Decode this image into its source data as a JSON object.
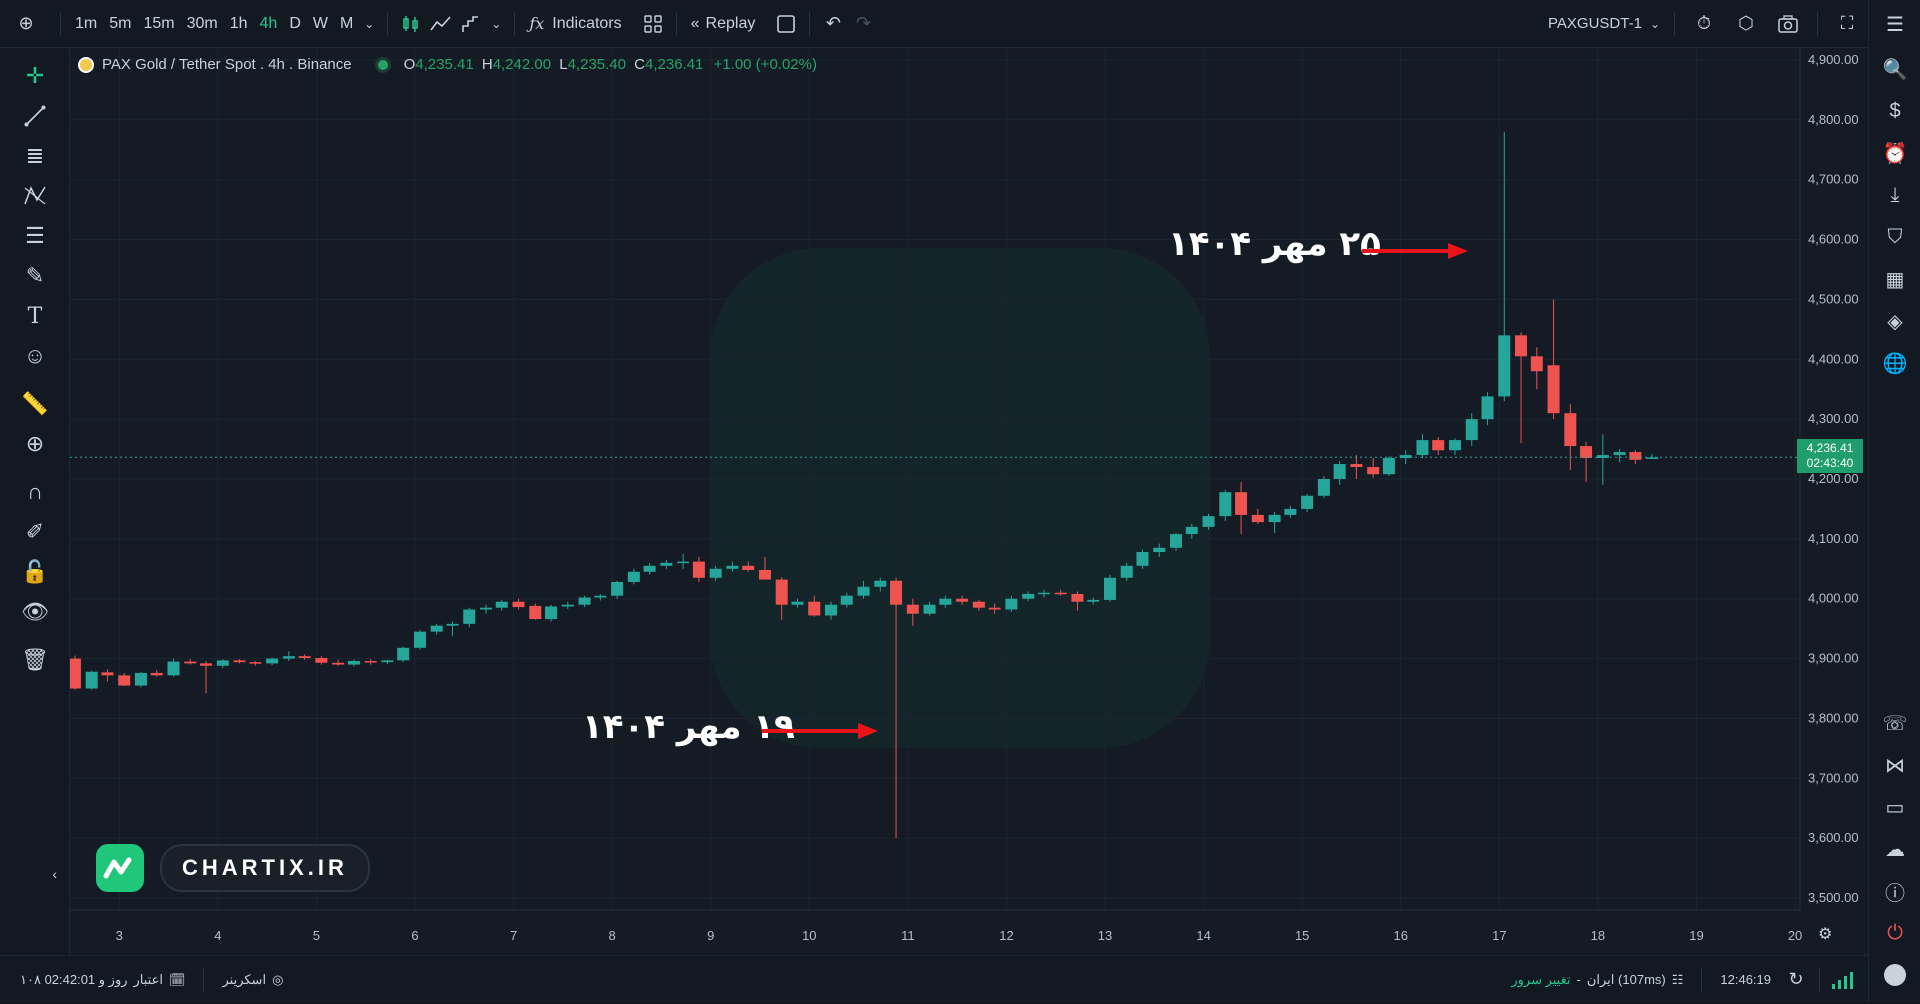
{
  "toolbar": {
    "timeframes": [
      "1m",
      "5m",
      "15m",
      "30m",
      "1h",
      "4h",
      "D",
      "W",
      "M"
    ],
    "active_timeframe": "4h",
    "indicators_label": "Indicators",
    "replay_label": "Replay",
    "symbol": "PAXGUSDT-1"
  },
  "legend": {
    "title": "PAX Gold / Tether Spot . 4h . Binance",
    "o_label": "O",
    "o_value": "4,235.41",
    "h_label": "H",
    "h_value": "4,242.00",
    "l_label": "L",
    "l_value": "4,235.40",
    "c_label": "C",
    "c_value": "4,236.41",
    "change": "+1.00 (+0.02%)"
  },
  "price_tag": {
    "price": "4,236.41",
    "countdown": "02:43:40"
  },
  "annotations": {
    "top": "۲۵ مهر ۱۴۰۴",
    "bottom": "۱۹ مهر ۱۴۰۴"
  },
  "logo": {
    "text": "CHARTIX.IR"
  },
  "statusbar": {
    "credit": "۱۰۸ روز و 02:42:01",
    "credit_label": "اعتبار",
    "screener": "اسکرینر",
    "server_change": "تغییر سرور",
    "server": "ایران (107ms)",
    "time": "12:46:19"
  },
  "colors": {
    "up": "#26a69a",
    "down": "#ef5350",
    "accent": "#26c68c",
    "annot_arrow": "#e8141a"
  },
  "chart_data": {
    "type": "candlestick",
    "y_ticks": [
      "4,900.00",
      "4,800.00",
      "4,700.00",
      "4,600.00",
      "4,500.00",
      "4,400.00",
      "4,300.00",
      "4,200.00",
      "4,100.00",
      "4,000.00",
      "3,900.00",
      "3,800.00",
      "3,700.00",
      "3,600.00",
      "3,500.00"
    ],
    "ylim": [
      3480,
      4920
    ],
    "x_ticks": [
      "3",
      "4",
      "5",
      "6",
      "7",
      "8",
      "9",
      "10",
      "11",
      "12",
      "13",
      "14",
      "15",
      "16",
      "17",
      "18",
      "19",
      "20"
    ],
    "x_tick_positions": [
      3,
      4,
      5,
      6,
      7,
      8,
      9,
      10,
      11,
      12,
      13,
      14,
      15,
      16,
      17,
      18,
      19,
      20
    ],
    "xlim": [
      2.5,
      20.05
    ],
    "current_price": 4236.41,
    "annotation_targets": {
      "top": {
        "x": 16.8,
        "y": 4600
      },
      "bottom": {
        "x": 10.8,
        "y": 3800
      }
    },
    "candles": [
      {
        "t": 2.55,
        "o": 3900,
        "h": 3905,
        "l": 3848,
        "c": 3850
      },
      {
        "t": 2.72,
        "o": 3850,
        "h": 3880,
        "l": 3848,
        "c": 3878
      },
      {
        "t": 2.88,
        "o": 3877,
        "h": 3882,
        "l": 3862,
        "c": 3872
      },
      {
        "t": 3.05,
        "o": 3872,
        "h": 3876,
        "l": 3854,
        "c": 3855
      },
      {
        "t": 3.22,
        "o": 3855,
        "h": 3878,
        "l": 3852,
        "c": 3876
      },
      {
        "t": 3.38,
        "o": 3876,
        "h": 3881,
        "l": 3870,
        "c": 3872
      },
      {
        "t": 3.55,
        "o": 3872,
        "h": 3900,
        "l": 3870,
        "c": 3895
      },
      {
        "t": 3.72,
        "o": 3895,
        "h": 3899,
        "l": 3890,
        "c": 3892
      },
      {
        "t": 3.88,
        "o": 3892,
        "h": 3896,
        "l": 3842,
        "c": 3888
      },
      {
        "t": 4.05,
        "o": 3888,
        "h": 3899,
        "l": 3884,
        "c": 3897
      },
      {
        "t": 4.22,
        "o": 3897,
        "h": 3899,
        "l": 3892,
        "c": 3894
      },
      {
        "t": 4.38,
        "o": 3894,
        "h": 3896,
        "l": 3888,
        "c": 3892
      },
      {
        "t": 4.55,
        "o": 3892,
        "h": 3902,
        "l": 3889,
        "c": 3900
      },
      {
        "t": 4.72,
        "o": 3900,
        "h": 3912,
        "l": 3896,
        "c": 3904
      },
      {
        "t": 4.88,
        "o": 3904,
        "h": 3907,
        "l": 3898,
        "c": 3901
      },
      {
        "t": 5.05,
        "o": 3901,
        "h": 3904,
        "l": 3890,
        "c": 3893
      },
      {
        "t": 5.22,
        "o": 3893,
        "h": 3898,
        "l": 3888,
        "c": 3890
      },
      {
        "t": 5.38,
        "o": 3890,
        "h": 3898,
        "l": 3887,
        "c": 3896
      },
      {
        "t": 5.55,
        "o": 3896,
        "h": 3899,
        "l": 3890,
        "c": 3894
      },
      {
        "t": 5.72,
        "o": 3894,
        "h": 3898,
        "l": 3891,
        "c": 3897
      },
      {
        "t": 5.88,
        "o": 3897,
        "h": 3920,
        "l": 3894,
        "c": 3918
      },
      {
        "t": 6.05,
        "o": 3918,
        "h": 3948,
        "l": 3915,
        "c": 3945
      },
      {
        "t": 6.22,
        "o": 3945,
        "h": 3958,
        "l": 3940,
        "c": 3955
      },
      {
        "t": 6.38,
        "o": 3955,
        "h": 3962,
        "l": 3938,
        "c": 3958
      },
      {
        "t": 6.55,
        "o": 3958,
        "h": 3985,
        "l": 3952,
        "c": 3982
      },
      {
        "t": 6.72,
        "o": 3982,
        "h": 3990,
        "l": 3975,
        "c": 3985
      },
      {
        "t": 6.88,
        "o": 3985,
        "h": 3998,
        "l": 3980,
        "c": 3995
      },
      {
        "t": 7.05,
        "o": 3995,
        "h": 4000,
        "l": 3982,
        "c": 3986
      },
      {
        "t": 7.22,
        "o": 3988,
        "h": 3992,
        "l": 3965,
        "c": 3966
      },
      {
        "t": 7.38,
        "o": 3966,
        "h": 3990,
        "l": 3962,
        "c": 3987
      },
      {
        "t": 7.55,
        "o": 3987,
        "h": 3995,
        "l": 3983,
        "c": 3990
      },
      {
        "t": 7.72,
        "o": 3990,
        "h": 4005,
        "l": 3986,
        "c": 4002
      },
      {
        "t": 7.88,
        "o": 4002,
        "h": 4008,
        "l": 3997,
        "c": 4005
      },
      {
        "t": 8.05,
        "o": 4005,
        "h": 4030,
        "l": 4000,
        "c": 4028
      },
      {
        "t": 8.22,
        "o": 4028,
        "h": 4050,
        "l": 4024,
        "c": 4045
      },
      {
        "t": 8.38,
        "o": 4045,
        "h": 4060,
        "l": 4040,
        "c": 4055
      },
      {
        "t": 8.55,
        "o": 4055,
        "h": 4065,
        "l": 4050,
        "c": 4060
      },
      {
        "t": 8.72,
        "o": 4060,
        "h": 4075,
        "l": 4050,
        "c": 4062
      },
      {
        "t": 8.88,
        "o": 4062,
        "h": 4070,
        "l": 4028,
        "c": 4035
      },
      {
        "t": 9.05,
        "o": 4035,
        "h": 4055,
        "l": 4030,
        "c": 4050
      },
      {
        "t": 9.22,
        "o": 4050,
        "h": 4062,
        "l": 4045,
        "c": 4055
      },
      {
        "t": 9.38,
        "o": 4055,
        "h": 4062,
        "l": 4045,
        "c": 4048
      },
      {
        "t": 9.55,
        "o": 4048,
        "h": 4070,
        "l": 4040,
        "c": 4032
      },
      {
        "t": 9.72,
        "o": 4032,
        "h": 4036,
        "l": 3965,
        "c": 3990
      },
      {
        "t": 9.88,
        "o": 3990,
        "h": 4000,
        "l": 3985,
        "c": 3995
      },
      {
        "t": 10.05,
        "o": 3995,
        "h": 4005,
        "l": 3970,
        "c": 3972
      },
      {
        "t": 10.22,
        "o": 3972,
        "h": 3995,
        "l": 3965,
        "c": 3990
      },
      {
        "t": 10.38,
        "o": 3990,
        "h": 4010,
        "l": 3985,
        "c": 4005
      },
      {
        "t": 10.55,
        "o": 4005,
        "h": 4030,
        "l": 4000,
        "c": 4020
      },
      {
        "t": 10.72,
        "o": 4020,
        "h": 4035,
        "l": 4012,
        "c": 4030
      },
      {
        "t": 10.88,
        "o": 4030,
        "h": 4035,
        "l": 3600,
        "c": 3990
      },
      {
        "t": 11.05,
        "o": 3990,
        "h": 4000,
        "l": 3955,
        "c": 3975
      },
      {
        "t": 11.22,
        "o": 3975,
        "h": 3995,
        "l": 3972,
        "c": 3990
      },
      {
        "t": 11.38,
        "o": 3990,
        "h": 4005,
        "l": 3985,
        "c": 4000
      },
      {
        "t": 11.55,
        "o": 4000,
        "h": 4005,
        "l": 3990,
        "c": 3995
      },
      {
        "t": 11.72,
        "o": 3995,
        "h": 3998,
        "l": 3980,
        "c": 3985
      },
      {
        "t": 11.88,
        "o": 3985,
        "h": 3992,
        "l": 3975,
        "c": 3982
      },
      {
        "t": 12.05,
        "o": 3982,
        "h": 4005,
        "l": 3978,
        "c": 4000
      },
      {
        "t": 12.22,
        "o": 4000,
        "h": 4012,
        "l": 3996,
        "c": 4008
      },
      {
        "t": 12.38,
        "o": 4008,
        "h": 4015,
        "l": 4002,
        "c": 4010
      },
      {
        "t": 12.55,
        "o": 4010,
        "h": 4015,
        "l": 4005,
        "c": 4008
      },
      {
        "t": 12.72,
        "o": 4008,
        "h": 4012,
        "l": 3980,
        "c": 3995
      },
      {
        "t": 12.88,
        "o": 3995,
        "h": 4002,
        "l": 3990,
        "c": 3998
      },
      {
        "t": 13.05,
        "o": 3998,
        "h": 4040,
        "l": 3995,
        "c": 4035
      },
      {
        "t": 13.22,
        "o": 4035,
        "h": 4060,
        "l": 4030,
        "c": 4055
      },
      {
        "t": 13.38,
        "o": 4055,
        "h": 4082,
        "l": 4050,
        "c": 4078
      },
      {
        "t": 13.55,
        "o": 4078,
        "h": 4092,
        "l": 4070,
        "c": 4085
      },
      {
        "t": 13.72,
        "o": 4085,
        "h": 4110,
        "l": 4080,
        "c": 4108
      },
      {
        "t": 13.88,
        "o": 4108,
        "h": 4125,
        "l": 4100,
        "c": 4120
      },
      {
        "t": 14.05,
        "o": 4120,
        "h": 4142,
        "l": 4115,
        "c": 4138
      },
      {
        "t": 14.22,
        "o": 4138,
        "h": 4182,
        "l": 4130,
        "c": 4178
      },
      {
        "t": 14.38,
        "o": 4178,
        "h": 4195,
        "l": 4108,
        "c": 4140
      },
      {
        "t": 14.55,
        "o": 4140,
        "h": 4150,
        "l": 4125,
        "c": 4128
      },
      {
        "t": 14.72,
        "o": 4128,
        "h": 4145,
        "l": 4110,
        "c": 4140
      },
      {
        "t": 14.88,
        "o": 4140,
        "h": 4155,
        "l": 4135,
        "c": 4150
      },
      {
        "t": 15.05,
        "o": 4150,
        "h": 4175,
        "l": 4145,
        "c": 4172
      },
      {
        "t": 15.22,
        "o": 4172,
        "h": 4205,
        "l": 4168,
        "c": 4200
      },
      {
        "t": 15.38,
        "o": 4200,
        "h": 4230,
        "l": 4190,
        "c": 4225
      },
      {
        "t": 15.55,
        "o": 4225,
        "h": 4240,
        "l": 4200,
        "c": 4220
      },
      {
        "t": 15.72,
        "o": 4220,
        "h": 4235,
        "l": 4202,
        "c": 4208
      },
      {
        "t": 15.88,
        "o": 4208,
        "h": 4238,
        "l": 4205,
        "c": 4235
      },
      {
        "t": 16.05,
        "o": 4235,
        "h": 4248,
        "l": 4225,
        "c": 4240
      },
      {
        "t": 16.22,
        "o": 4240,
        "h": 4275,
        "l": 4235,
        "c": 4265
      },
      {
        "t": 16.38,
        "o": 4265,
        "h": 4270,
        "l": 4240,
        "c": 4248
      },
      {
        "t": 16.55,
        "o": 4248,
        "h": 4268,
        "l": 4240,
        "c": 4265
      },
      {
        "t": 16.72,
        "o": 4265,
        "h": 4310,
        "l": 4255,
        "c": 4300
      },
      {
        "t": 16.88,
        "o": 4300,
        "h": 4345,
        "l": 4290,
        "c": 4338
      },
      {
        "t": 17.05,
        "o": 4338,
        "h": 4780,
        "l": 4330,
        "c": 4440
      },
      {
        "t": 17.22,
        "o": 4440,
        "h": 4445,
        "l": 4260,
        "c": 4405
      },
      {
        "t": 17.38,
        "o": 4405,
        "h": 4420,
        "l": 4350,
        "c": 4380
      },
      {
        "t": 17.55,
        "o": 4390,
        "h": 4500,
        "l": 4300,
        "c": 4310
      },
      {
        "t": 17.72,
        "o": 4310,
        "h": 4325,
        "l": 4215,
        "c": 4255
      },
      {
        "t": 17.88,
        "o": 4255,
        "h": 4262,
        "l": 4195,
        "c": 4235
      },
      {
        "t": 18.05,
        "o": 4235,
        "h": 4275,
        "l": 4190,
        "c": 4240
      },
      {
        "t": 18.22,
        "o": 4240,
        "h": 4250,
        "l": 4228,
        "c": 4245
      },
      {
        "t": 18.38,
        "o": 4245,
        "h": 4248,
        "l": 4225,
        "c": 4232
      },
      {
        "t": 18.55,
        "o": 4235,
        "h": 4242,
        "l": 4235,
        "c": 4236
      }
    ]
  }
}
